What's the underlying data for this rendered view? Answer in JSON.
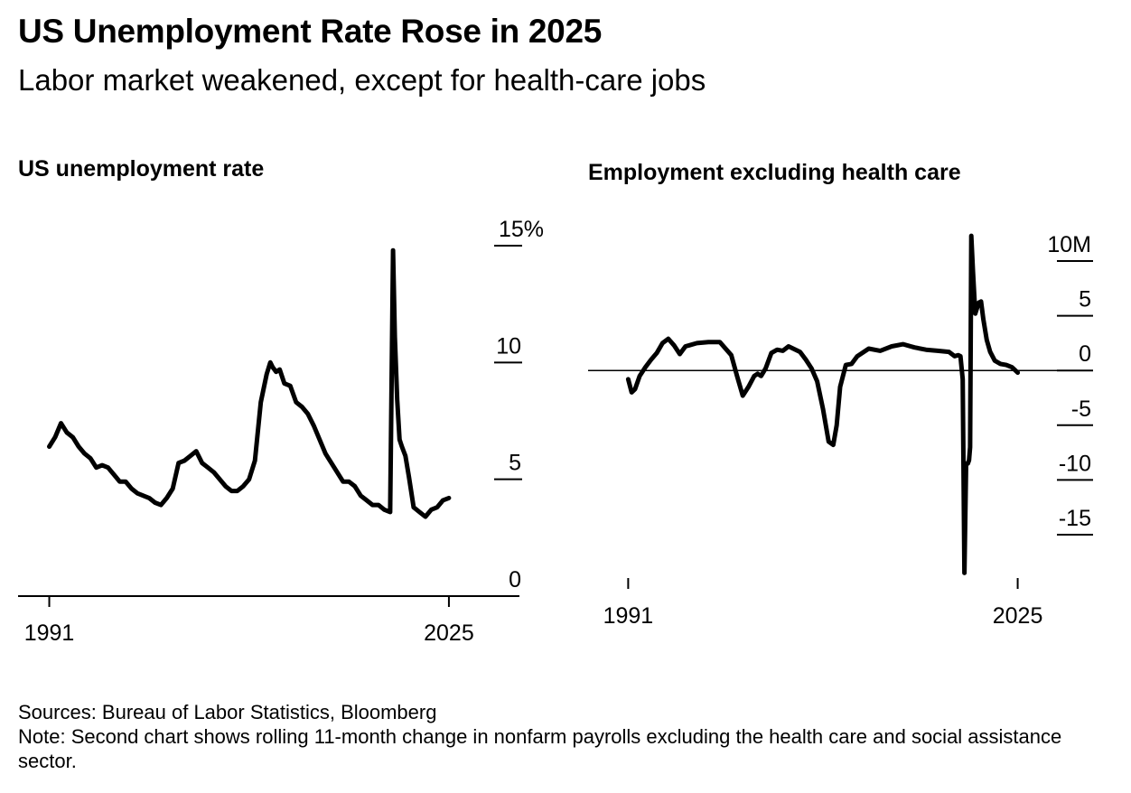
{
  "title": "US Unemployment Rate Rose in 2025",
  "subtitle": "Labor market weakened, except for health-care jobs",
  "footer": {
    "sources": "Sources: Bureau of Labor Statistics, Bloomberg",
    "note": "Note: Second chart shows rolling 11-month change in nonfarm payrolls excluding the health care and social assistance sector."
  },
  "colors": {
    "line": "#000000",
    "axis": "#000000",
    "background": "#ffffff"
  },
  "chart_data": [
    {
      "type": "line",
      "title": "US unemployment rate",
      "xlabel": "",
      "ylabel": "",
      "x_tick_labels": [
        "1991",
        "2025"
      ],
      "x_ticks": [
        1991,
        2025
      ],
      "xlim": [
        1988.5,
        2031
      ],
      "y_tick_labels": [
        "15%",
        "10",
        "5",
        "0"
      ],
      "y_ticks": [
        15,
        10,
        5,
        0
      ],
      "ylim": [
        0,
        15
      ],
      "series": [
        {
          "name": "Unemployment rate",
          "x": [
            1991.0,
            1991.5,
            1992.0,
            1992.5,
            1993.0,
            1993.5,
            1994.0,
            1994.5,
            1995.0,
            1995.5,
            1996.0,
            1997.0,
            1997.5,
            1998.0,
            1998.5,
            1999.0,
            1999.5,
            2000.0,
            2000.5,
            2001.0,
            2001.5,
            2002.0,
            2002.5,
            2003.0,
            2003.5,
            2004.0,
            2004.5,
            2005.0,
            2006.0,
            2006.5,
            2007.0,
            2007.5,
            2008.0,
            2008.5,
            2009.0,
            2009.5,
            2009.8,
            2010.0,
            2010.3,
            2010.6,
            2011.0,
            2011.5,
            2012.0,
            2012.5,
            2013.0,
            2013.5,
            2014.0,
            2014.5,
            2015.0,
            2015.5,
            2016.0,
            2016.5,
            2017.0,
            2017.5,
            2018.0,
            2018.5,
            2019.0,
            2019.5,
            2020.0,
            2020.25,
            2020.4,
            2020.6,
            2020.8,
            2021.0,
            2021.3,
            2021.6,
            2022.0,
            2022.5,
            2023.0,
            2023.5,
            2024.0,
            2024.5,
            2025.0
          ],
          "y": [
            6.4,
            6.8,
            7.4,
            7.0,
            6.8,
            6.4,
            6.1,
            5.9,
            5.5,
            5.6,
            5.5,
            4.9,
            4.9,
            4.6,
            4.4,
            4.3,
            4.2,
            4.0,
            3.9,
            4.2,
            4.6,
            5.7,
            5.8,
            6.0,
            6.2,
            5.7,
            5.5,
            5.3,
            4.7,
            4.5,
            4.5,
            4.7,
            5.0,
            5.8,
            8.3,
            9.5,
            10.0,
            9.8,
            9.6,
            9.7,
            9.1,
            9.0,
            8.3,
            8.1,
            7.8,
            7.3,
            6.7,
            6.1,
            5.7,
            5.3,
            4.9,
            4.9,
            4.7,
            4.3,
            4.1,
            3.9,
            3.9,
            3.7,
            3.6,
            14.8,
            11.1,
            8.4,
            6.7,
            6.4,
            6.0,
            5.1,
            3.8,
            3.6,
            3.4,
            3.7,
            3.8,
            4.1,
            4.2
          ]
        }
      ]
    },
    {
      "type": "line",
      "title": "Employment excluding health care",
      "xlabel": "",
      "ylabel": "",
      "x_tick_labels": [
        "1991",
        "2025"
      ],
      "x_ticks": [
        1991,
        2025
      ],
      "xlim": [
        1987.5,
        2031.5
      ],
      "y_tick_labels": [
        "10M",
        "5",
        "0",
        "-5",
        "-10",
        "-15"
      ],
      "y_ticks": [
        10,
        5,
        0,
        -5,
        -10,
        -15
      ],
      "ylim": [
        -18.5,
        12
      ],
      "series": [
        {
          "name": "Rolling 11-month change in nonfarm payrolls ex health care",
          "x": [
            1991.0,
            1991.3,
            1991.6,
            1992.0,
            1992.5,
            1993.0,
            1993.5,
            1994.0,
            1994.5,
            1995.0,
            1995.5,
            1996.0,
            1997.0,
            1998.0,
            1999.0,
            2000.0,
            2000.5,
            2001.0,
            2001.5,
            2002.0,
            2002.3,
            2002.6,
            2003.0,
            2003.5,
            2004.0,
            2004.5,
            2005.0,
            2006.0,
            2006.5,
            2007.0,
            2007.5,
            2008.0,
            2008.5,
            2008.9,
            2009.2,
            2009.5,
            2010.0,
            2010.5,
            2011.0,
            2012.0,
            2013.0,
            2014.0,
            2015.0,
            2016.0,
            2017.0,
            2018.0,
            2019.0,
            2019.5,
            2019.8,
            2020.0,
            2020.2,
            2020.35,
            2020.5,
            2020.65,
            2020.75,
            2020.85,
            2020.95,
            2021.1,
            2021.3,
            2021.6,
            2021.8,
            2022.0,
            2022.3,
            2022.6,
            2023.0,
            2023.5,
            2024.0,
            2024.5,
            2025.0
          ],
          "y": [
            -0.8,
            -2.0,
            -1.7,
            -0.5,
            0.3,
            1.0,
            1.6,
            2.5,
            2.9,
            2.3,
            1.5,
            2.2,
            2.5,
            2.6,
            2.6,
            1.4,
            -0.5,
            -2.3,
            -1.5,
            -0.5,
            -0.3,
            -0.5,
            0.2,
            1.6,
            1.9,
            1.8,
            2.2,
            1.7,
            1.0,
            0.2,
            -1.0,
            -3.5,
            -6.5,
            -6.8,
            -5.0,
            -1.5,
            0.5,
            0.6,
            1.3,
            2.0,
            1.8,
            2.2,
            2.4,
            2.1,
            1.9,
            1.8,
            1.7,
            1.3,
            1.4,
            1.3,
            -0.8,
            -18.5,
            -8.5,
            -8.5,
            -8.2,
            -7.0,
            12.3,
            9.0,
            5.2,
            6.2,
            6.3,
            4.7,
            2.8,
            1.7,
            0.9,
            0.6,
            0.5,
            0.3,
            -0.2
          ]
        }
      ]
    }
  ]
}
